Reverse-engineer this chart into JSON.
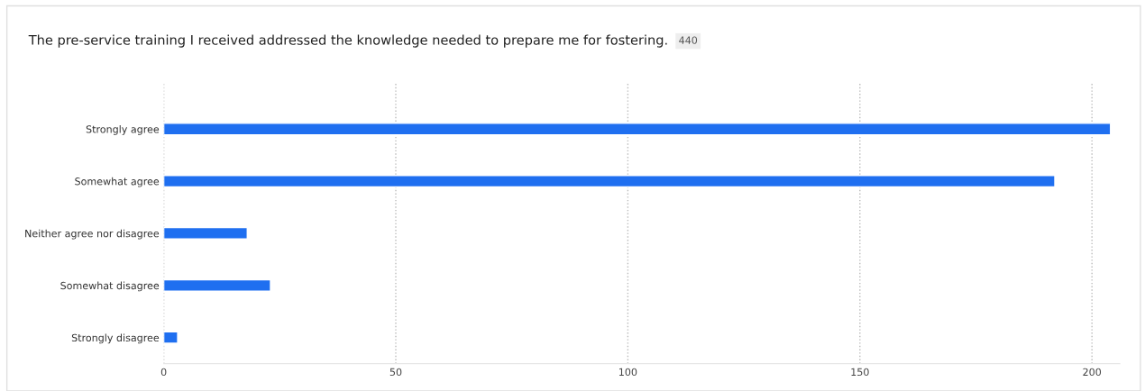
{
  "chart_data": {
    "type": "bar",
    "orientation": "horizontal",
    "title": "The pre-service training I received addressed the knowledge needed to prepare me for fostering.",
    "annotations": [
      "440"
    ],
    "categories": [
      "Strongly agree",
      "Somewhat agree",
      "Neither agree nor disagree",
      "Somewhat disagree",
      "Strongly disagree"
    ],
    "values": [
      204,
      192,
      18,
      23,
      3
    ],
    "color": "#1f6ff0",
    "xlim": [
      0,
      206
    ],
    "xticks": [
      0,
      50,
      100,
      150,
      200
    ],
    "grid": "x"
  }
}
